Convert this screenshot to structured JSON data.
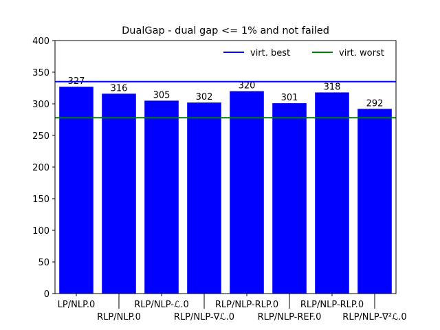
{
  "chart_data": {
    "type": "bar",
    "title": "DualGap - dual gap <= 1% and not failed",
    "xlabel": "",
    "ylabel": "",
    "categories": [
      "LP/NLP.0",
      "RLP/NLP.0",
      "RLP/NLP-ℒ.0",
      "RLP/NLP-∇ℒ.0",
      "RLP/NLP-RLP.0",
      "RLP/NLP-REF.0",
      "RLP/NLP-RLP.0",
      "RLP/NLP-∇²ℒ.0"
    ],
    "values": [
      327,
      316,
      305,
      302,
      320,
      301,
      318,
      292
    ],
    "data_labels": [
      "327",
      "316",
      "305",
      "302",
      "320",
      "301",
      "318",
      "292"
    ],
    "ylim": [
      0,
      400
    ],
    "yticks": [
      0,
      50,
      100,
      150,
      200,
      250,
      300,
      350,
      400
    ],
    "bar_color": "#0000ff",
    "grid": false,
    "hlines": [
      {
        "name": "virt. best",
        "value": 335,
        "color": "#0000ff"
      },
      {
        "name": "virt. worst",
        "value": 278,
        "color": "#008000"
      }
    ],
    "legend_position": "top-right"
  }
}
